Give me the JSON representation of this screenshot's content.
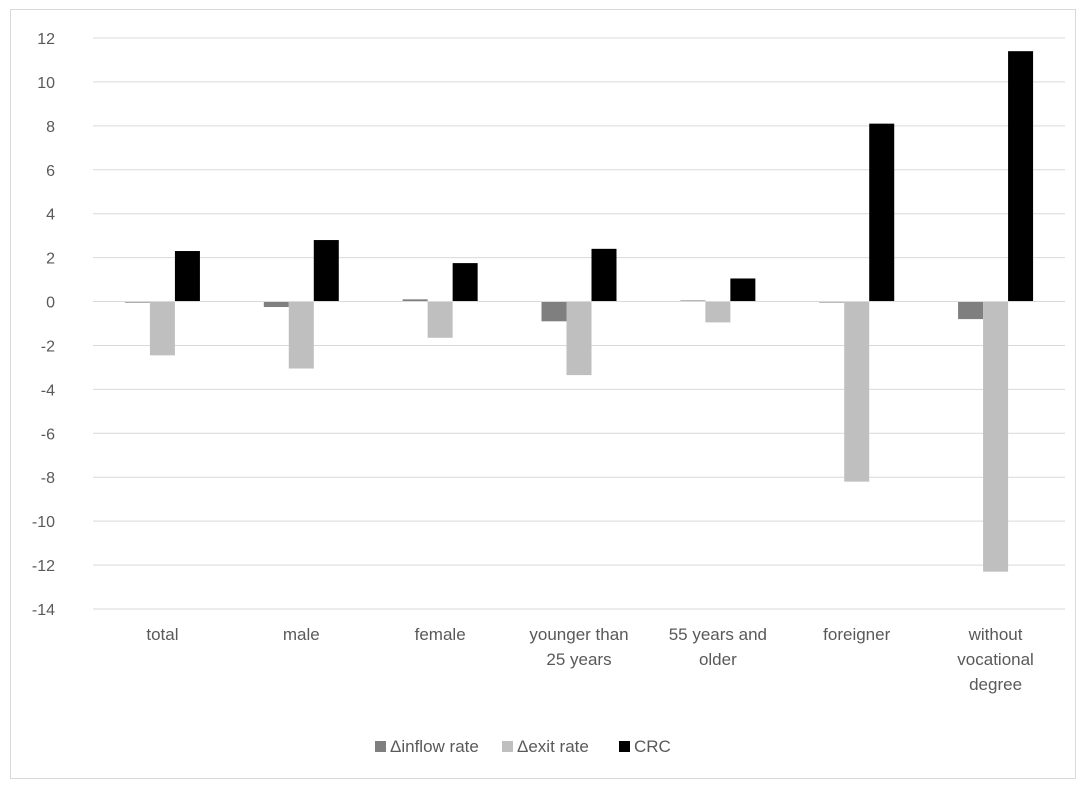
{
  "chart_data": {
    "type": "bar",
    "categories": [
      [
        "total"
      ],
      [
        "male"
      ],
      [
        "female"
      ],
      [
        "younger than",
        "25 years"
      ],
      [
        "55 years and",
        "older"
      ],
      [
        "foreigner"
      ],
      [
        "without",
        "vocational",
        "degree"
      ]
    ],
    "series": [
      {
        "name": "Δinflow rate",
        "color": "#7f7f7f",
        "values": [
          -0.05,
          -0.25,
          0.1,
          -0.9,
          0.05,
          -0.02,
          -0.8
        ]
      },
      {
        "name": "Δexit rate",
        "color": "#bfbfbf",
        "values": [
          -2.45,
          -3.05,
          -1.65,
          -3.35,
          -0.95,
          -8.2,
          -12.3
        ]
      },
      {
        "name": "CRC",
        "color": "#000000",
        "values": [
          2.3,
          2.8,
          1.75,
          2.4,
          1.05,
          8.1,
          11.4
        ]
      }
    ],
    "ylim": [
      -14,
      12
    ],
    "yticks": [
      12,
      10,
      8,
      6,
      4,
      2,
      0,
      -2,
      -4,
      -6,
      -8,
      -10,
      -12,
      -14
    ],
    "grid": true,
    "legend_position": "bottom",
    "title": "",
    "xlabel": "",
    "ylabel": ""
  }
}
